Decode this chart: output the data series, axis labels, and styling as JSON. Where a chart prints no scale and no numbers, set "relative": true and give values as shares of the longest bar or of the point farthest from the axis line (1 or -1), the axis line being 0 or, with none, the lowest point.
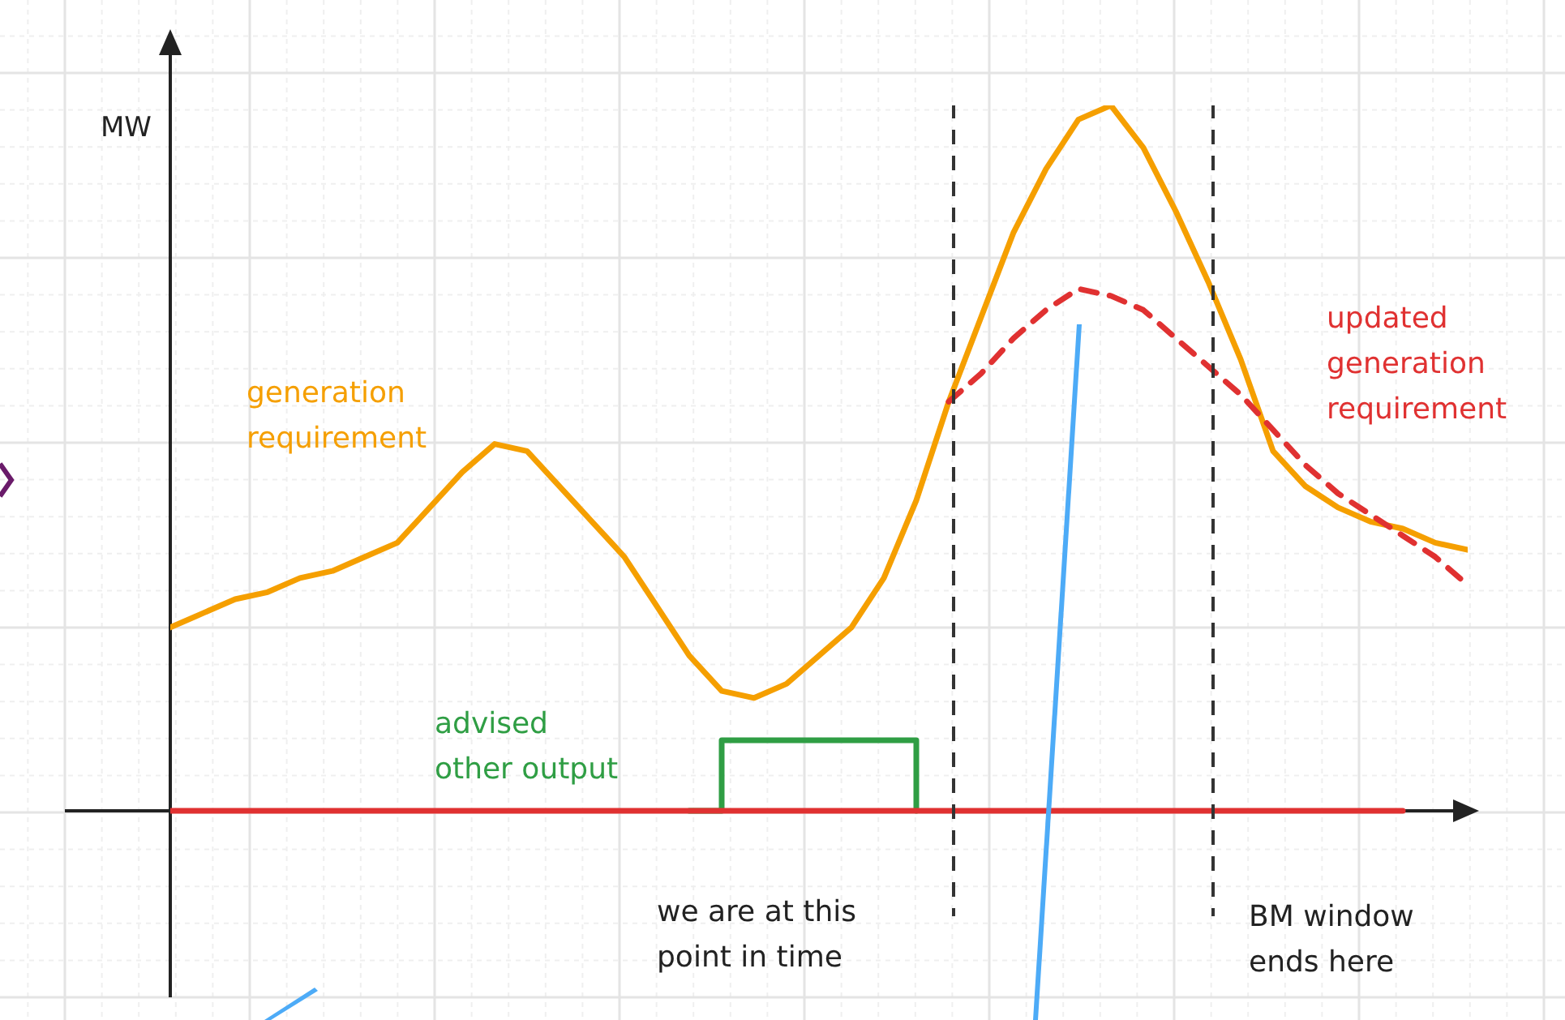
{
  "chart_data": {
    "type": "line",
    "relative": true,
    "ylabel": "MW",
    "grid": true,
    "tick_labels": false,
    "categories": [
      null,
      null,
      null,
      null,
      null,
      null,
      null,
      null,
      null,
      null,
      null,
      null,
      null,
      null,
      null,
      null,
      null,
      null,
      null,
      null,
      null,
      null,
      null,
      null,
      null,
      null,
      null,
      null,
      null,
      null,
      null,
      null,
      null,
      null,
      null,
      null,
      null,
      null,
      null,
      null,
      null
    ],
    "series": [
      {
        "name": "generation requirement",
        "color": "#f59f00",
        "values": [
          0.26,
          0.28,
          0.3,
          0.31,
          0.33,
          0.34,
          0.36,
          0.38,
          0.43,
          0.48,
          0.52,
          0.51,
          0.46,
          0.41,
          0.36,
          0.29,
          0.22,
          0.17,
          0.16,
          0.18,
          0.22,
          0.26,
          0.33,
          0.44,
          0.58,
          0.7,
          0.82,
          0.91,
          0.98,
          1.0,
          0.94,
          0.85,
          0.75,
          0.64,
          0.51,
          0.46,
          0.43,
          0.41,
          0.4,
          0.38,
          0.37
        ]
      },
      {
        "name": "updated generation requirement",
        "color": "#e03131",
        "line_style": "dashed",
        "values": [
          null,
          null,
          null,
          null,
          null,
          null,
          null,
          null,
          null,
          null,
          null,
          null,
          null,
          null,
          null,
          null,
          null,
          null,
          null,
          null,
          null,
          null,
          null,
          null,
          0.58,
          0.62,
          0.67,
          0.71,
          0.74,
          0.73,
          0.71,
          0.67,
          0.63,
          0.59,
          0.54,
          0.49,
          0.45,
          0.42,
          0.39,
          0.36,
          0.32
        ]
      },
      {
        "name": "advised other output",
        "type": "step",
        "color": "#2f9e44",
        "values": [
          null,
          null,
          null,
          null,
          null,
          null,
          null,
          null,
          null,
          null,
          null,
          null,
          null,
          null,
          null,
          null,
          0,
          0.1,
          0.1,
          0.1,
          0.1,
          0.1,
          0.1,
          0,
          null,
          null,
          null,
          null,
          null,
          null,
          null,
          null,
          null,
          null,
          null,
          null,
          null,
          null,
          null,
          null,
          null
        ]
      },
      {
        "color": "#e03131",
        "values": [
          0,
          0,
          0,
          0,
          0,
          0,
          0,
          0,
          0,
          0,
          0,
          0,
          0,
          0,
          0,
          0,
          0,
          0,
          0,
          0,
          0,
          0,
          0,
          0,
          0,
          0,
          0,
          0,
          0,
          0,
          0,
          0,
          0,
          0,
          0,
          0,
          0,
          0,
          0,
          null,
          null
        ]
      }
    ],
    "annotations": [
      "we are at this point in time",
      "BM window ends here"
    ]
  }
}
